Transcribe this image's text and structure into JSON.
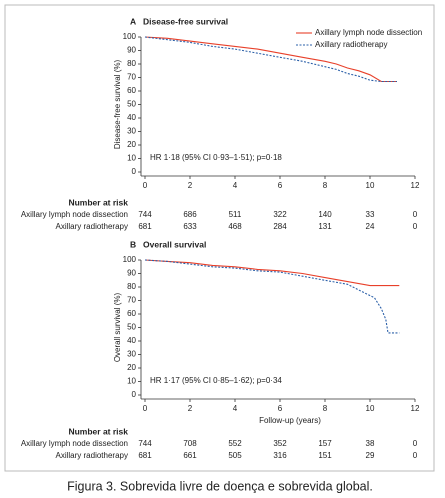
{
  "chart_data": [
    {
      "type": "line",
      "panel": "A",
      "title": "Disease-free survival",
      "ylabel": "Disease-free survival (%)",
      "annotation": "HR 1·18 (95% CI 0·93–1·51); p=0·18",
      "xlim": [
        0,
        12
      ],
      "xticks": [
        0,
        2,
        4,
        6,
        8,
        10,
        12
      ],
      "ylim": [
        0,
        100
      ],
      "yticks": [
        0,
        10,
        20,
        30,
        40,
        50,
        60,
        70,
        80,
        90,
        100
      ],
      "legend": "upper right",
      "risk_title": "Number at risk",
      "series": [
        {
          "name": "Axillary lymph node dissection",
          "color": "#e8402a",
          "linestyle": "solid",
          "x": [
            0,
            1,
            2,
            3,
            4,
            5,
            6,
            7,
            8,
            8.5,
            9,
            9.5,
            10,
            10.5,
            11.2
          ],
          "values": [
            100,
            99,
            97,
            95,
            93,
            91,
            88,
            85,
            82,
            80,
            77,
            75,
            72,
            67,
            67
          ],
          "at_risk": [
            744,
            686,
            511,
            322,
            140,
            33,
            0
          ]
        },
        {
          "name": "Axillary radiotherapy",
          "color": "#2a5fa8",
          "linestyle": "dotted",
          "x": [
            0,
            1,
            2,
            3,
            4,
            5,
            6,
            7,
            8,
            8.5,
            9,
            9.5,
            10,
            10.5,
            11.2
          ],
          "values": [
            100,
            98,
            96,
            93,
            91,
            88,
            85,
            82,
            78,
            76,
            73,
            71,
            68,
            67,
            67
          ],
          "at_risk": [
            681,
            633,
            468,
            284,
            131,
            24,
            0
          ]
        }
      ]
    },
    {
      "type": "line",
      "panel": "B",
      "title": "Overall survival",
      "ylabel": "Overall survival (%)",
      "xlabel": "Follow-up (years)",
      "annotation": "HR 1·17 (95% CI 0·85–1·62); p=0·34",
      "xlim": [
        0,
        12
      ],
      "xticks": [
        0,
        2,
        4,
        6,
        8,
        10,
        12
      ],
      "ylim": [
        0,
        100
      ],
      "yticks": [
        0,
        10,
        20,
        30,
        40,
        50,
        60,
        70,
        80,
        90,
        100
      ],
      "legend": false,
      "risk_title": "Number at risk",
      "series": [
        {
          "name": "Axillary lymph node dissection",
          "color": "#e8402a",
          "linestyle": "solid",
          "x": [
            0,
            1,
            2,
            3,
            4,
            5,
            6,
            7,
            8,
            9,
            10,
            11.3
          ],
          "values": [
            100,
            99,
            98,
            96,
            95,
            93,
            92,
            90,
            87,
            84,
            81,
            81
          ],
          "at_risk": [
            744,
            708,
            552,
            352,
            157,
            38,
            0
          ]
        },
        {
          "name": "Axillary radiotherapy",
          "color": "#2a5fa8",
          "linestyle": "dotted",
          "x": [
            0,
            1,
            2,
            3,
            4,
            5,
            6,
            7,
            8,
            9,
            9.6,
            10.2,
            10.5,
            10.7,
            10.8,
            11.3
          ],
          "values": [
            100,
            99,
            97,
            95,
            94,
            92,
            91,
            88,
            85,
            82,
            77,
            72,
            64,
            56,
            46,
            46
          ],
          "at_risk": [
            681,
            661,
            505,
            316,
            151,
            29,
            0
          ]
        }
      ]
    }
  ],
  "caption": "Figura 3. Sobrevida livre de doença e sobrevida global."
}
